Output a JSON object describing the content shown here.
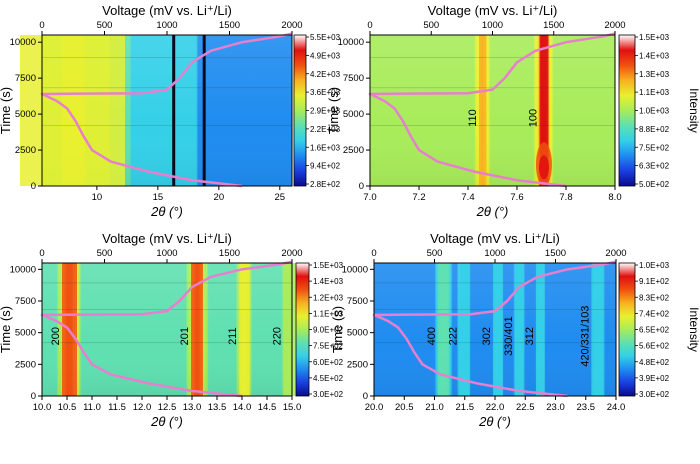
{
  "chart_data": [
    {
      "type": "heatmap",
      "top_axis": {
        "label": "Voltage (mV vs. Li⁺/Li)",
        "range": [
          0,
          2000
        ],
        "ticks": [
          "0",
          "500",
          "1000",
          "1500",
          "2000"
        ]
      },
      "x_axis": {
        "label": "2θ (°)",
        "range": [
          5.5,
          26
        ],
        "ticks": [
          "10",
          "15",
          "20",
          "25"
        ]
      },
      "y_axis": {
        "label": "Time (s)",
        "range": [
          0,
          10500
        ],
        "ticks": [
          "0",
          "2500",
          "5000",
          "7500",
          "10000"
        ]
      },
      "colorbar": {
        "label": "",
        "ticks": [
          "5.5E+03",
          "4.9E+03",
          "4.2E+03",
          "3.6E+03",
          "2.9E+03",
          "2.2E+03",
          "1.6E+03",
          "9.4E+02",
          "2.8E+02"
        ]
      },
      "peaks": [
        {
          "label": "",
          "x": 8.0
        }
      ],
      "dark_lines_x": [
        16.3,
        18.8
      ],
      "voltage_curve": [
        [
          1.6,
          0
        ],
        [
          1.2,
          400
        ],
        [
          0.85,
          1000
        ],
        [
          0.55,
          1700
        ],
        [
          0.4,
          2500
        ],
        [
          0.33,
          3500
        ],
        [
          0.27,
          4500
        ],
        [
          0.2,
          5400
        ],
        [
          0.12,
          5900
        ],
        [
          0.05,
          6200
        ],
        [
          0.0,
          6400
        ],
        [
          0.3,
          6420
        ],
        [
          0.8,
          6450
        ],
        [
          1.0,
          6700
        ],
        [
          1.1,
          7500
        ],
        [
          1.2,
          8600
        ],
        [
          1.35,
          9400
        ],
        [
          1.6,
          10000
        ],
        [
          1.9,
          10400
        ],
        [
          2.0,
          10600
        ]
      ]
    },
    {
      "type": "heatmap",
      "top_axis": {
        "label": "Voltage (mV vs. Li⁺/Li)",
        "range": [
          0,
          2000
        ],
        "ticks": [
          "0",
          "500",
          "1000",
          "1500",
          "2000"
        ]
      },
      "x_axis": {
        "label": "2θ (°)",
        "range": [
          7.0,
          8.0
        ],
        "ticks": [
          "7.0",
          "7.2",
          "7.4",
          "7.6",
          "7.8",
          "8.0"
        ]
      },
      "y_axis": {
        "label": "Time (s)",
        "range": [
          0,
          10500
        ],
        "ticks": [
          "0",
          "2500",
          "5000",
          "7500",
          "10000"
        ]
      },
      "colorbar": {
        "label": "Intensity",
        "ticks": [
          "1.5E+03",
          "1.4E+03",
          "1.3E+03",
          "1.1E+03",
          "1.0E+03",
          "8.8E+02",
          "7.5E+02",
          "6.3E+02",
          "5.0E+02"
        ]
      },
      "peaks": [
        {
          "label": "110",
          "x": 7.46
        },
        {
          "label": "100",
          "x": 7.71
        }
      ],
      "dark_lines_x": [],
      "voltage_curve": [
        [
          1.6,
          0
        ],
        [
          1.2,
          400
        ],
        [
          0.85,
          1000
        ],
        [
          0.55,
          1700
        ],
        [
          0.4,
          2500
        ],
        [
          0.33,
          3500
        ],
        [
          0.27,
          4500
        ],
        [
          0.2,
          5400
        ],
        [
          0.12,
          5900
        ],
        [
          0.05,
          6200
        ],
        [
          0.0,
          6400
        ],
        [
          0.3,
          6420
        ],
        [
          0.8,
          6450
        ],
        [
          1.0,
          6700
        ],
        [
          1.1,
          7500
        ],
        [
          1.2,
          8600
        ],
        [
          1.35,
          9400
        ],
        [
          1.6,
          10000
        ],
        [
          1.9,
          10400
        ],
        [
          2.0,
          10600
        ]
      ]
    },
    {
      "type": "heatmap",
      "top_axis": {
        "label": "Voltage (mV vs. Li⁺/Li)",
        "range": [
          0,
          2000
        ],
        "ticks": [
          "0",
          "500",
          "1000",
          "1500",
          "2000"
        ]
      },
      "x_axis": {
        "label": "2θ (°)",
        "range": [
          10.0,
          15.0
        ],
        "ticks": [
          "10.0",
          "10.5",
          "11.0",
          "11.5",
          "12.0",
          "12.5",
          "13.0",
          "13.5",
          "14.0",
          "14.5",
          "15.0"
        ]
      },
      "y_axis": {
        "label": "Time (s)",
        "range": [
          0,
          10500
        ],
        "ticks": [
          "0",
          "2500",
          "5000",
          "7500",
          "10000"
        ]
      },
      "colorbar": {
        "label": "",
        "ticks": [
          "1.5E+03",
          "1.4E+03",
          "1.2E+03",
          "1.1E+03",
          "9.0E+02",
          "7.5E+02",
          "6.0E+02",
          "4.5E+02",
          "3.0E+02"
        ]
      },
      "peaks": [
        {
          "label": "200",
          "x": 10.55
        },
        {
          "label": "201",
          "x": 13.1
        },
        {
          "label": "211",
          "x": 14.05
        },
        {
          "label": "220",
          "x": 14.95
        }
      ],
      "dark_lines_x": [],
      "voltage_curve": [
        [
          1.6,
          0
        ],
        [
          1.2,
          400
        ],
        [
          0.85,
          1000
        ],
        [
          0.55,
          1700
        ],
        [
          0.4,
          2500
        ],
        [
          0.33,
          3500
        ],
        [
          0.27,
          4500
        ],
        [
          0.2,
          5400
        ],
        [
          0.12,
          5900
        ],
        [
          0.05,
          6200
        ],
        [
          0.0,
          6400
        ],
        [
          0.3,
          6420
        ],
        [
          0.8,
          6450
        ],
        [
          1.0,
          6700
        ],
        [
          1.1,
          7500
        ],
        [
          1.2,
          8600
        ],
        [
          1.35,
          9400
        ],
        [
          1.6,
          10000
        ],
        [
          1.9,
          10400
        ],
        [
          2.0,
          10600
        ]
      ]
    },
    {
      "type": "heatmap",
      "top_axis": {
        "label": "Voltage (mV vs. Li⁺/Li)",
        "range": [
          0,
          2000
        ],
        "ticks": [
          "0",
          "500",
          "1000",
          "1500",
          "2000"
        ]
      },
      "x_axis": {
        "label": "2θ (°)",
        "range": [
          20.0,
          24.0
        ],
        "ticks": [
          "20.0",
          "20.5",
          "21.0",
          "21.5",
          "22.0",
          "22.5",
          "23.0",
          "23.5",
          "24.0"
        ]
      },
      "y_axis": {
        "label": "Time (s)",
        "range": [
          0,
          10500
        ],
        "ticks": [
          "0",
          "2500",
          "5000",
          "7500",
          "10000"
        ]
      },
      "colorbar": {
        "label": "Intensity",
        "ticks": [
          "1.0E+03",
          "9.1E+02",
          "8.3E+02",
          "7.4E+02",
          "6.5E+02",
          "5.6E+02",
          "4.8E+02",
          "3.9E+02",
          "3.0E+02"
        ]
      },
      "peaks": [
        {
          "label": "400",
          "x": 21.15
        },
        {
          "label": "222",
          "x": 21.5
        },
        {
          "label": "302",
          "x": 22.05
        },
        {
          "label": "330/401",
          "x": 22.4
        },
        {
          "label": "312",
          "x": 22.75
        },
        {
          "label": "420/331/103",
          "x": 23.7
        }
      ],
      "dark_lines_x": [],
      "voltage_curve": [
        [
          1.6,
          0
        ],
        [
          1.2,
          400
        ],
        [
          0.85,
          1000
        ],
        [
          0.55,
          1700
        ],
        [
          0.4,
          2500
        ],
        [
          0.33,
          3500
        ],
        [
          0.27,
          4500
        ],
        [
          0.2,
          5400
        ],
        [
          0.12,
          5900
        ],
        [
          0.05,
          6200
        ],
        [
          0.0,
          6400
        ],
        [
          0.3,
          6420
        ],
        [
          0.8,
          6450
        ],
        [
          1.0,
          6700
        ],
        [
          1.1,
          7500
        ],
        [
          1.2,
          8600
        ],
        [
          1.35,
          9400
        ],
        [
          1.6,
          10000
        ],
        [
          1.9,
          10400
        ],
        [
          2.0,
          10600
        ]
      ]
    }
  ],
  "colors": {
    "voltage_curve": "#e77fcf",
    "colormap": [
      "#0a0a8a",
      "#1a3fe0",
      "#1f8cf0",
      "#34d0e8",
      "#5fe0b0",
      "#a8ec5a",
      "#e8f030",
      "#f8b020",
      "#f05010",
      "#e01010",
      "#ffffff"
    ]
  }
}
